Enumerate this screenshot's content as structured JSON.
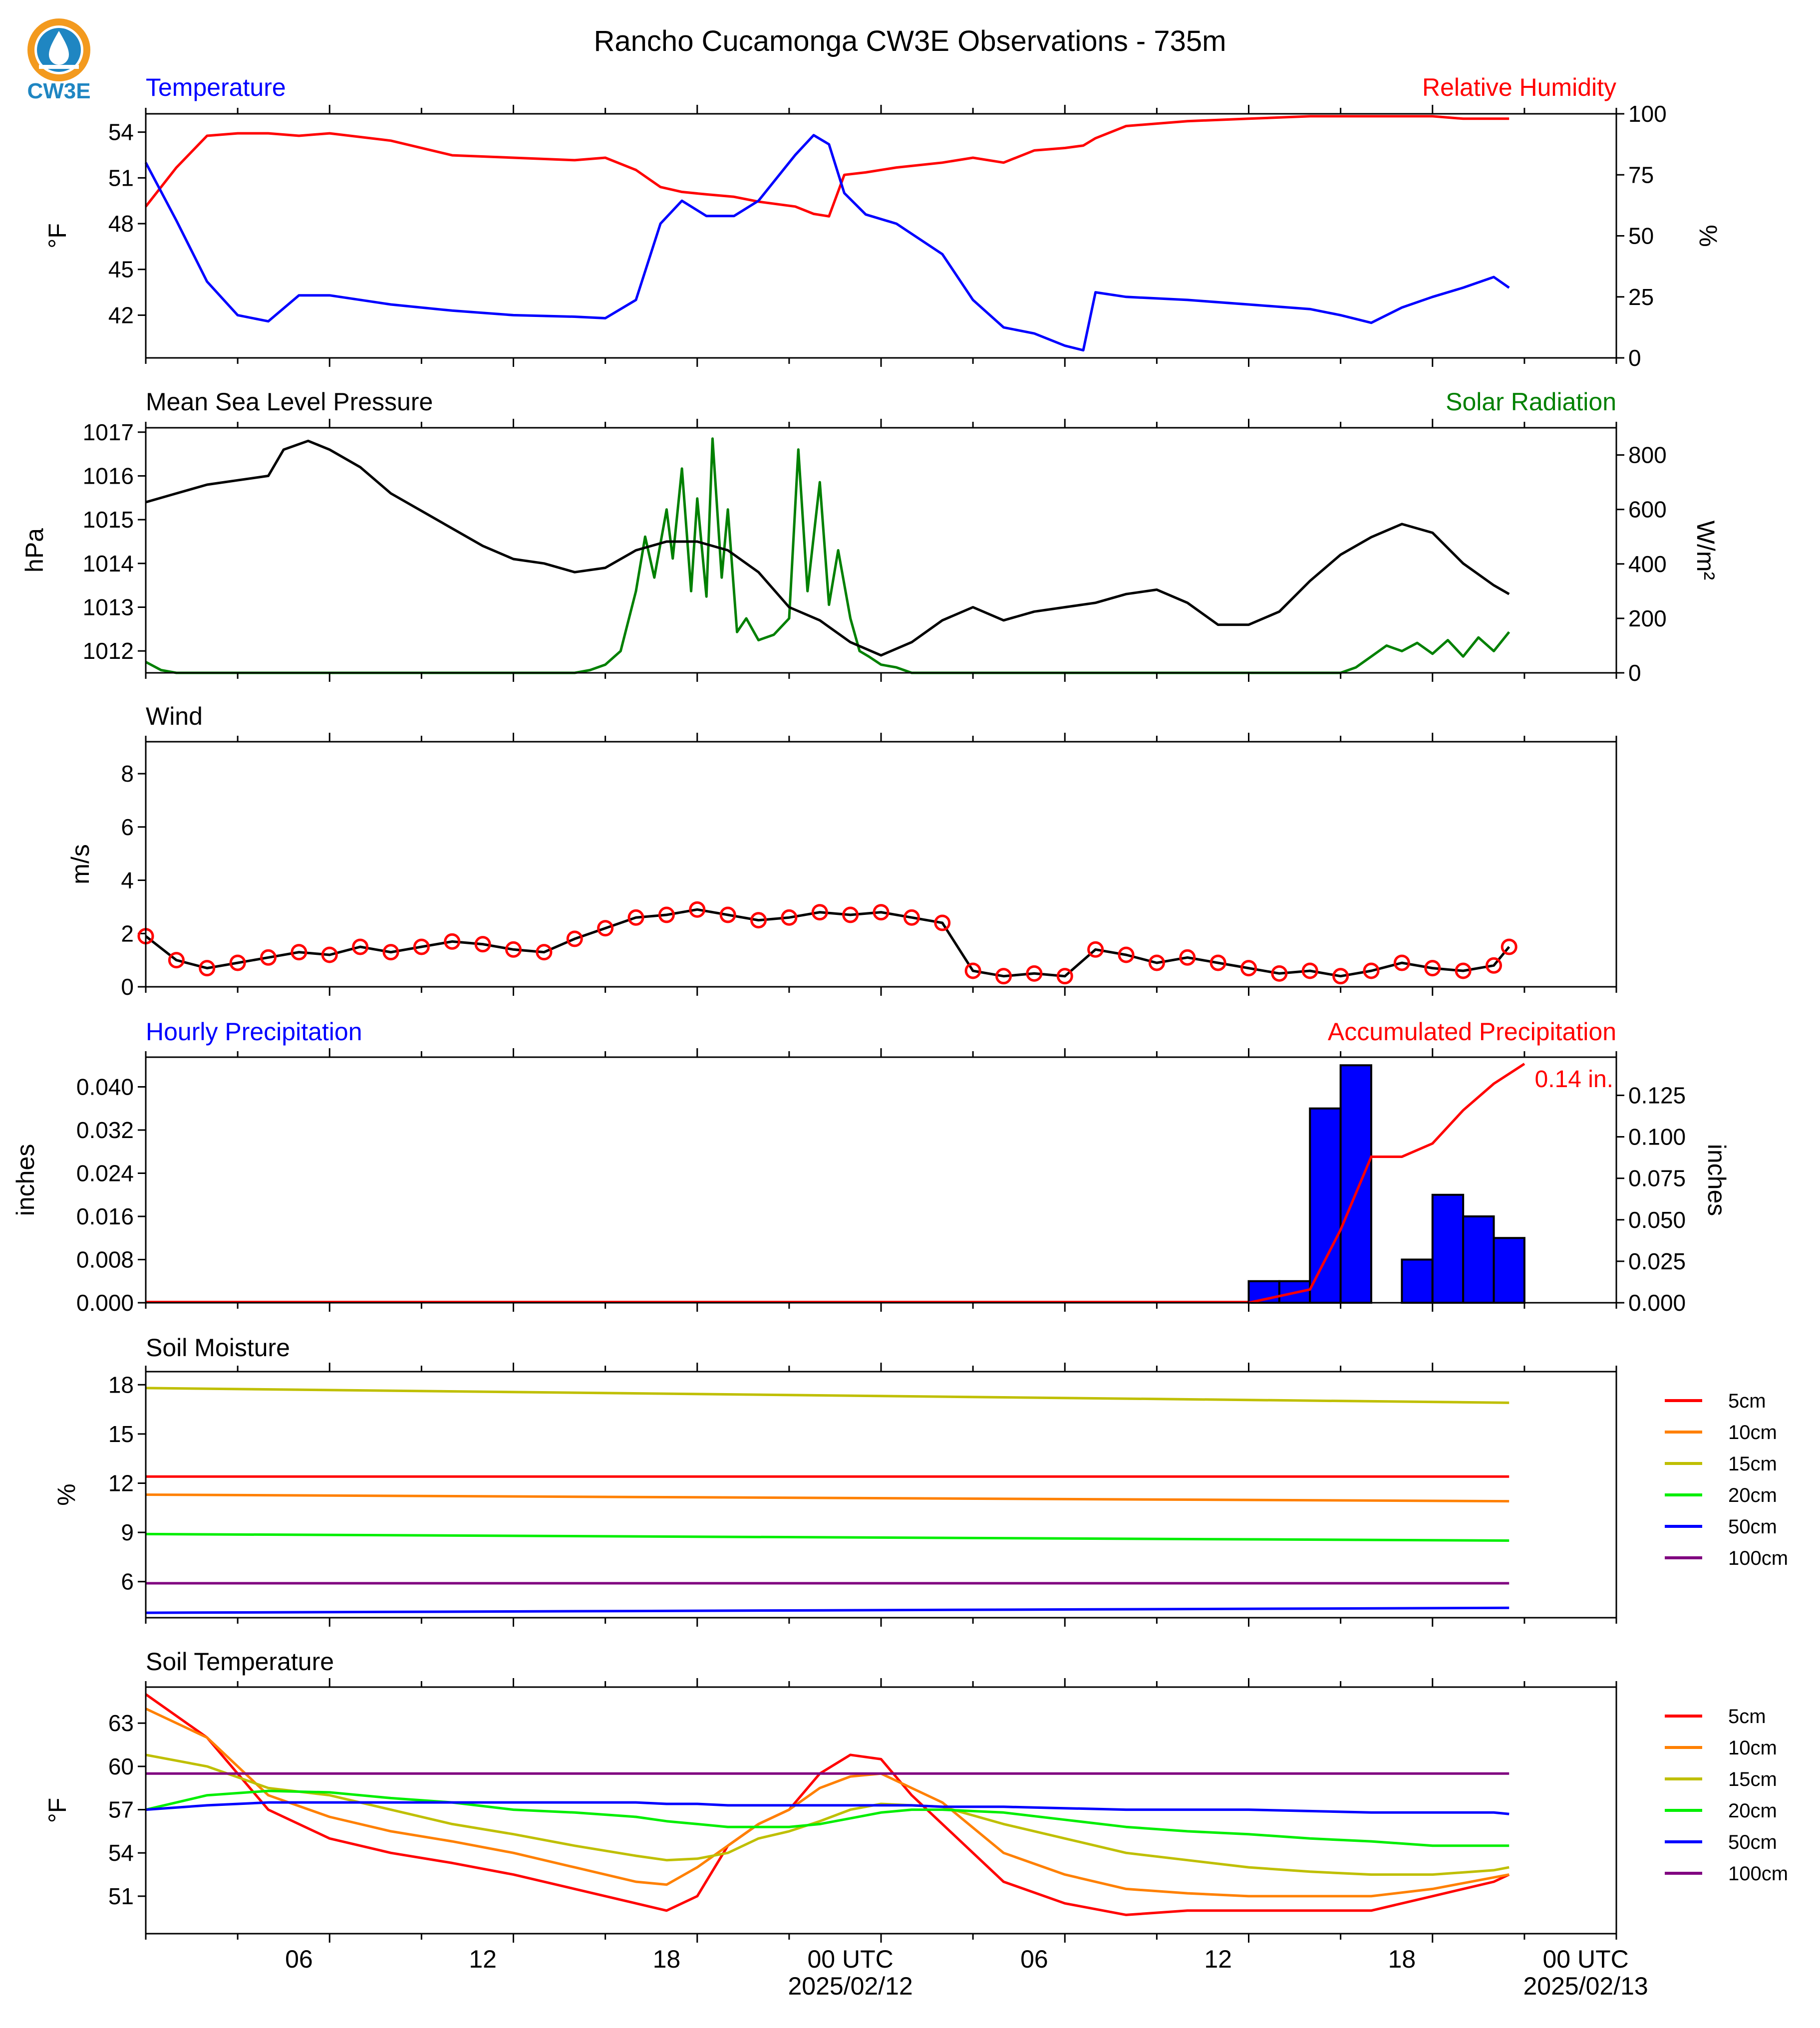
{
  "title": "Rancho Cucamonga CW3E Observations - 735m",
  "logo_text": "CW3E",
  "time_axis": {
    "ticks": [
      "06",
      "12",
      "18",
      "00 UTC",
      "06",
      "12",
      "18",
      "00 UTC"
    ],
    "dates": [
      "2025/02/12",
      "2025/02/13"
    ]
  },
  "colors": {
    "temperature": "#0000ff",
    "humidity": "#ff0000",
    "pressure": "#000000",
    "solar": "#008000",
    "precip_bar": "#0000ff",
    "precip_accum": "#ff0000",
    "logo": "#1f86c2",
    "logo_ring": "#f39a1e"
  },
  "chart_data": [
    {
      "type": "line",
      "panel": "temperature_humidity",
      "left_title": "Temperature",
      "right_title": "Relative Humidity",
      "ylabel": "°F",
      "ylabel_right": "%",
      "yticks": [
        "54",
        "51",
        "48",
        "45",
        "42"
      ],
      "yticks_right": [
        "100",
        "75",
        "50",
        "25",
        "0"
      ],
      "ylim": [
        39.2,
        55.2
      ],
      "ylim_right": [
        0,
        100
      ],
      "x_hours": [
        0,
        1,
        2,
        3,
        4,
        5,
        6,
        8,
        10,
        12,
        14,
        15,
        16,
        16.8,
        17.5,
        18.3,
        19.2,
        20,
        21.2,
        21.8,
        22.3,
        22.8,
        23.5,
        24.5,
        26,
        27,
        28,
        29,
        30,
        30.6,
        31,
        32,
        34,
        36,
        38,
        39,
        40,
        41,
        42,
        43,
        44,
        44.5
      ],
      "series": [
        {
          "name": "Temperature",
          "axis": "left",
          "values": [
            52,
            48.2,
            44.2,
            42,
            41.6,
            43.3,
            43.3,
            42.7,
            42.3,
            42,
            41.9,
            41.8,
            43,
            48,
            49.5,
            48.5,
            48.5,
            49.5,
            52.5,
            53.8,
            53.2,
            50,
            48.6,
            48,
            46,
            43,
            41.2,
            40.8,
            40,
            39.7,
            43.5,
            43.2,
            43,
            42.7,
            42.4,
            42,
            41.5,
            42.5,
            43.2,
            43.8,
            44.5,
            43.8
          ]
        },
        {
          "name": "Relative Humidity",
          "axis": "right",
          "values": [
            62,
            78,
            91,
            92,
            92,
            91,
            92,
            89,
            83,
            82,
            81,
            82,
            77,
            70,
            68,
            67,
            66,
            64,
            62,
            59,
            58,
            75,
            76,
            78,
            80,
            82,
            80,
            85,
            86,
            87,
            90,
            95,
            97,
            98,
            99,
            99,
            99,
            99,
            99,
            98,
            98,
            98
          ]
        }
      ]
    },
    {
      "type": "line",
      "panel": "pressure_solar",
      "left_title": "Mean Sea Level Pressure",
      "right_title": "Solar Radiation",
      "ylabel": "hPa",
      "ylabel_right": "W/m²",
      "yticks": [
        "1017",
        "1016",
        "1015",
        "1014",
        "1013",
        "1012"
      ],
      "yticks_right": [
        "800",
        "600",
        "400",
        "200",
        "0"
      ],
      "ylim": [
        1011.5,
        1017.1
      ],
      "ylim_right": [
        0,
        900
      ],
      "x_hours": [
        0,
        1,
        2,
        3,
        4,
        4.5,
        5.3,
        6,
        7,
        8,
        9,
        10,
        11,
        12,
        13,
        14,
        15,
        16,
        17,
        18,
        19,
        20,
        21,
        22,
        23,
        24,
        25,
        26,
        27,
        28,
        29,
        30,
        31,
        32,
        33,
        34,
        35,
        36,
        37,
        38,
        39,
        40,
        41,
        42,
        43,
        44,
        44.5
      ],
      "series": [
        {
          "name": "Mean Sea Level Pressure",
          "axis": "left",
          "values": [
            1015.4,
            1015.6,
            1015.8,
            1015.9,
            1016,
            1016.6,
            1016.8,
            1016.6,
            1016.2,
            1015.6,
            1015.2,
            1014.8,
            1014.4,
            1014.1,
            1014,
            1013.8,
            1013.9,
            1014.3,
            1014.5,
            1014.5,
            1014.3,
            1013.8,
            1013,
            1012.7,
            1012.2,
            1011.9,
            1012.2,
            1012.7,
            1013,
            1012.7,
            1012.9,
            1013,
            1013.1,
            1013.3,
            1013.4,
            1013.1,
            1012.6,
            1012.6,
            1012.9,
            1013.6,
            1014.2,
            1014.6,
            1014.9,
            1014.7,
            1014,
            1013.5,
            1013.3
          ]
        },
        {
          "name": "Solar Radiation",
          "axis": "right",
          "x_hours": [
            0,
            0.5,
            1,
            14,
            14.5,
            15,
            15.5,
            16,
            16.3,
            16.6,
            17,
            17.2,
            17.5,
            17.8,
            18,
            18.3,
            18.5,
            18.8,
            19,
            19.3,
            19.6,
            20,
            20.5,
            21,
            21.3,
            21.6,
            22,
            22.3,
            22.6,
            23,
            23.3,
            23.6,
            24,
            24.5,
            25,
            25.5,
            26,
            30,
            36,
            38,
            39,
            39.5,
            40,
            40.5,
            41,
            41.5,
            42,
            42.5,
            43,
            43.5,
            44,
            44.5
          ],
          "values": [
            40,
            10,
            0,
            0,
            10,
            30,
            80,
            300,
            500,
            350,
            600,
            420,
            750,
            300,
            640,
            280,
            860,
            350,
            600,
            150,
            200,
            120,
            140,
            200,
            820,
            300,
            700,
            250,
            450,
            200,
            80,
            60,
            30,
            20,
            0,
            0,
            0,
            0,
            0,
            0,
            0,
            20,
            60,
            100,
            80,
            110,
            70,
            120,
            60,
            130,
            80,
            150
          ]
        }
      ]
    },
    {
      "type": "line",
      "panel": "wind",
      "left_title": "Wind",
      "ylabel": "m/s",
      "yticks": [
        "8",
        "6",
        "4",
        "2",
        "0"
      ],
      "ylim": [
        0,
        9.2
      ],
      "x_hours": [
        0,
        1,
        2,
        3,
        4,
        5,
        6,
        7,
        8,
        9,
        10,
        11,
        12,
        13,
        14,
        15,
        16,
        17,
        18,
        19,
        20,
        21,
        22,
        23,
        24,
        25,
        26,
        27,
        28,
        29,
        30,
        31,
        32,
        33,
        34,
        35,
        36,
        37,
        38,
        39,
        40,
        41,
        42,
        43,
        44,
        44.5
      ],
      "series": [
        {
          "name": "Wind",
          "values": [
            1.9,
            1,
            0.7,
            0.9,
            1.1,
            1.3,
            1.2,
            1.5,
            1.3,
            1.5,
            1.7,
            1.6,
            1.4,
            1.3,
            1.8,
            2.2,
            2.6,
            2.7,
            2.9,
            2.7,
            2.5,
            2.6,
            2.8,
            2.7,
            2.8,
            2.6,
            2.4,
            0.6,
            0.4,
            0.5,
            0.4,
            1.4,
            1.2,
            0.9,
            1.1,
            0.9,
            0.7,
            0.5,
            0.6,
            0.4,
            0.6,
            0.9,
            0.7,
            0.6,
            0.8,
            1.5
          ]
        }
      ],
      "obs_markers_hours": [
        0,
        1,
        2,
        3,
        4,
        5,
        6,
        7,
        8,
        9,
        10,
        11,
        12,
        13,
        14,
        15,
        16,
        17,
        18,
        19,
        20,
        21,
        22,
        23,
        24,
        25,
        26,
        27,
        28,
        29,
        30,
        31,
        32,
        33,
        34,
        35,
        36,
        37,
        38,
        39,
        40,
        41,
        42,
        43,
        44,
        44.5
      ]
    },
    {
      "type": "bar",
      "panel": "precipitation",
      "left_title": "Hourly Precipitation",
      "right_title": "Accumulated Precipitation",
      "ylabel": "inches",
      "ylabel_right": "inches",
      "yticks": [
        "0.040",
        "0.032",
        "0.024",
        "0.016",
        "0.008",
        "0.000"
      ],
      "yticks_right": [
        "0.125",
        "0.100",
        "0.075",
        "0.050",
        "0.025",
        "0.000"
      ],
      "ylim": [
        0,
        0.0455
      ],
      "ylim_right": [
        0,
        0.148
      ],
      "bar_hours": [
        36,
        37,
        38,
        39,
        40,
        41,
        42,
        43,
        44
      ],
      "values": [
        0.004,
        0.004,
        0.036,
        0.044,
        0,
        0.008,
        0.02,
        0.016,
        0.012
      ],
      "accumulated": [
        0.004,
        0.008,
        0.044,
        0.088,
        0.088,
        0.096,
        0.116,
        0.132,
        0.144
      ],
      "annotation": "0.14 in."
    },
    {
      "type": "line",
      "panel": "soil_moisture",
      "left_title": "Soil Moisture",
      "ylabel": "%",
      "yticks": [
        "18",
        "15",
        "12",
        "9",
        "6"
      ],
      "ylim": [
        3.8,
        18.8
      ],
      "x_hours": [
        0,
        44.5
      ],
      "legend": "right",
      "series": [
        {
          "name": "5cm",
          "color": "#ff0000",
          "values": [
            12.4,
            12.4
          ]
        },
        {
          "name": "10cm",
          "color": "#ff8000",
          "values": [
            11.3,
            10.9
          ]
        },
        {
          "name": "15cm",
          "color": "#bfbf00",
          "values": [
            17.8,
            16.9
          ]
        },
        {
          "name": "20cm",
          "color": "#00ee00",
          "values": [
            8.9,
            8.5
          ]
        },
        {
          "name": "50cm",
          "color": "#0000ff",
          "values": [
            4.1,
            4.4
          ]
        },
        {
          "name": "100cm",
          "color": "#800080",
          "values": [
            5.9,
            5.9
          ]
        }
      ]
    },
    {
      "type": "line",
      "panel": "soil_temperature",
      "left_title": "Soil Temperature",
      "ylabel": "°F",
      "yticks": [
        "63",
        "60",
        "57",
        "54",
        "51"
      ],
      "ylim": [
        48.4,
        65.5
      ],
      "x_hours": [
        0,
        2,
        4,
        6,
        8,
        10,
        12,
        14,
        16,
        17,
        18,
        19,
        20,
        21,
        22,
        23,
        24,
        25,
        26,
        28,
        30,
        32,
        34,
        36,
        38,
        40,
        42,
        44,
        44.5
      ],
      "legend": "right",
      "series": [
        {
          "name": "5cm",
          "color": "#ff0000",
          "values": [
            65,
            62,
            57,
            55,
            54,
            53.3,
            52.5,
            51.5,
            50.5,
            50,
            51,
            54.5,
            56,
            57,
            59.5,
            60.8,
            60.5,
            58,
            56,
            52,
            50.5,
            49.7,
            50,
            50,
            50,
            50,
            51,
            52,
            52.5
          ]
        },
        {
          "name": "10cm",
          "color": "#ff8000",
          "values": [
            64,
            62,
            58,
            56.5,
            55.5,
            54.8,
            54,
            53,
            52,
            51.8,
            53,
            54.5,
            56,
            57,
            58.5,
            59.3,
            59.5,
            58.5,
            57.5,
            54,
            52.5,
            51.5,
            51.2,
            51,
            51,
            51,
            51.5,
            52.3,
            52.5
          ]
        },
        {
          "name": "15cm",
          "color": "#bfbf00",
          "values": [
            60.8,
            60,
            58.5,
            58,
            57,
            56,
            55.3,
            54.5,
            53.8,
            53.5,
            53.6,
            54,
            55,
            55.5,
            56.2,
            57,
            57.4,
            57.3,
            57.2,
            56,
            55,
            54,
            53.5,
            53,
            52.7,
            52.5,
            52.5,
            52.8,
            53
          ]
        },
        {
          "name": "20cm",
          "color": "#00ee00",
          "values": [
            57,
            58,
            58.3,
            58.2,
            57.8,
            57.5,
            57,
            56.8,
            56.5,
            56.2,
            56,
            55.8,
            55.8,
            55.8,
            56,
            56.4,
            56.8,
            57,
            57,
            56.8,
            56.3,
            55.8,
            55.5,
            55.3,
            55,
            54.8,
            54.5,
            54.5,
            54.5
          ]
        },
        {
          "name": "50cm",
          "color": "#0000ff",
          "values": [
            57,
            57.3,
            57.5,
            57.5,
            57.5,
            57.5,
            57.5,
            57.5,
            57.5,
            57.4,
            57.4,
            57.3,
            57.3,
            57.3,
            57.3,
            57.3,
            57.3,
            57.3,
            57.2,
            57.2,
            57.1,
            57,
            57,
            57,
            56.9,
            56.8,
            56.8,
            56.8,
            56.7
          ]
        },
        {
          "name": "100cm",
          "color": "#800080",
          "values": [
            59.5,
            59.5,
            59.5,
            59.5,
            59.5,
            59.5,
            59.5,
            59.5,
            59.5,
            59.5,
            59.5,
            59.5,
            59.5,
            59.5,
            59.5,
            59.5,
            59.5,
            59.5,
            59.5,
            59.5,
            59.5,
            59.5,
            59.5,
            59.5,
            59.5,
            59.5,
            59.5,
            59.5,
            59.5
          ]
        }
      ]
    }
  ]
}
